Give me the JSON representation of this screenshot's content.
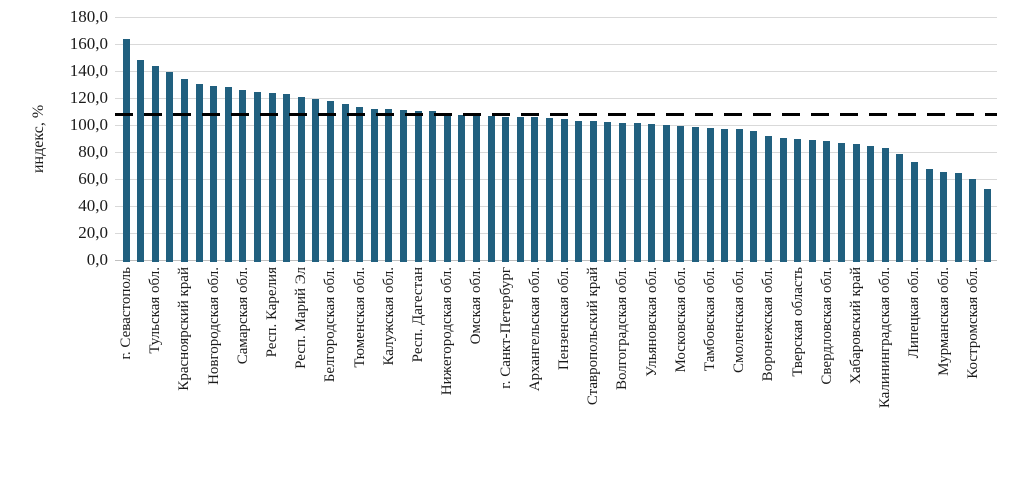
{
  "chart_data": {
    "type": "bar",
    "title": "",
    "xlabel": "",
    "ylabel": "индекс, %",
    "ylim": [
      0,
      180
    ],
    "ytick_step": 20,
    "ytick_labels": [
      "0,0",
      "20,0",
      "40,0",
      "60,0",
      "80,0",
      "100,0",
      "120,0",
      "140,0",
      "160,0",
      "180,0"
    ],
    "grid": true,
    "legend": "none",
    "bar_color": "#21607F",
    "gridline_color": "#d9d9d9",
    "reference_line": {
      "value": 108,
      "style": "dashed",
      "color": "#000000"
    },
    "label_step": 2,
    "x_labels": [
      "г. Севастополь",
      "Тульская обл.",
      "Красноярский край",
      "Новгородская обл.",
      "Самарская обл.",
      "Респ. Карелия",
      "Респ. Марий Эл",
      "Белгородская обл.",
      "Тюменская обл.",
      "Калужская обл.",
      "Респ. Дагестан",
      "Нижегородская обл.",
      "Омская обл.",
      "г. Санкт-Петербург",
      "Архангельская обл.",
      "Пензенская обл.",
      "Ставропольский край",
      "Волгоградская обл.",
      "Ульяновская обл.",
      "Московская обл.",
      "Тамбовская обл.",
      "Смоленская обл.",
      "Воронежская обл.",
      "Тверская область",
      "Свердловская обл.",
      "Хабаровский край",
      "Калининградская обл.",
      "Липецкая обл.",
      "Мурманская обл.",
      "Костромская обл."
    ],
    "values": [
      164,
      148,
      143.5,
      139,
      134,
      130,
      128.5,
      128,
      126,
      124.5,
      123.5,
      122.5,
      120.5,
      119.5,
      118,
      115.5,
      113,
      112,
      111.5,
      111,
      110.5,
      110,
      108.5,
      107.5,
      107,
      106.5,
      106,
      106,
      105.5,
      105,
      104.5,
      103,
      102.5,
      102,
      101.5,
      101,
      100.5,
      99.5,
      99,
      98.5,
      97.5,
      97,
      96.5,
      95.5,
      92,
      90.5,
      89.5,
      89,
      88,
      86.5,
      85.5,
      84,
      83,
      78,
      72.5,
      67.5,
      65,
      64,
      60,
      52
    ]
  }
}
